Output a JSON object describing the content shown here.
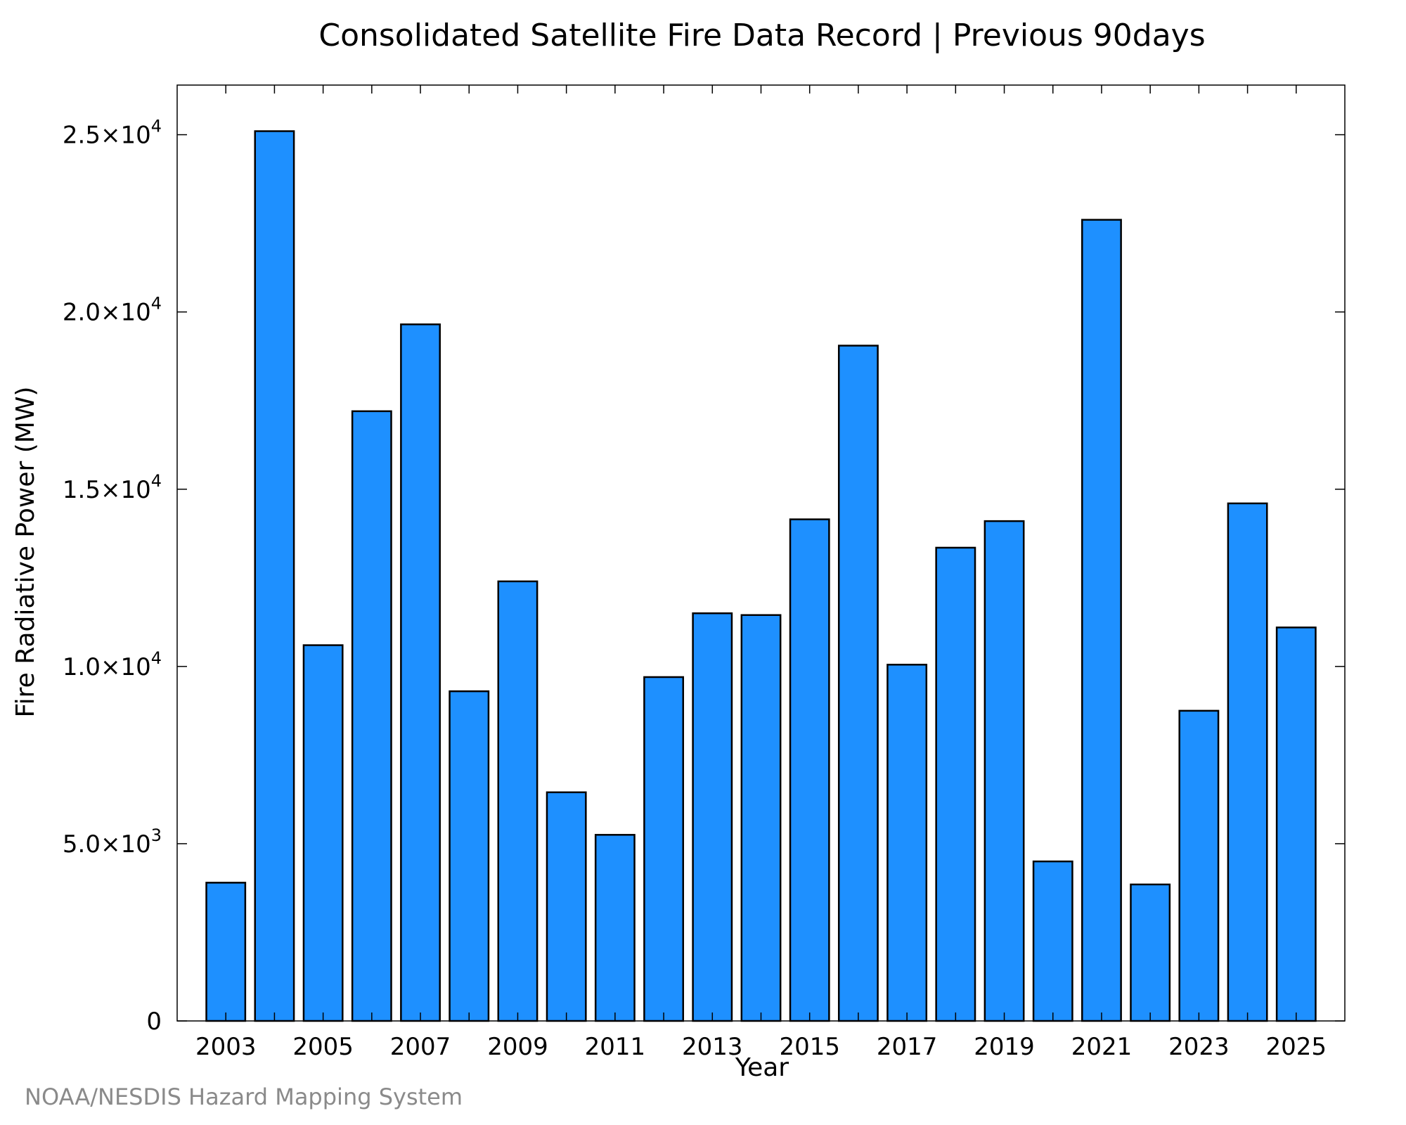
{
  "chart_data": {
    "type": "bar",
    "title": "Consolidated Satellite Fire Data Record | Previous 90days",
    "xlabel": "Year",
    "ylabel": "Fire Radiative Power (MW)",
    "credit": "NOAA/NESDIS Hazard Mapping System",
    "categories": [
      2003,
      2004,
      2005,
      2006,
      2007,
      2008,
      2009,
      2010,
      2011,
      2012,
      2013,
      2014,
      2015,
      2016,
      2017,
      2018,
      2019,
      2020,
      2021,
      2022,
      2023,
      2024,
      2025
    ],
    "values": [
      3900,
      25100,
      10600,
      17200,
      19650,
      9300,
      12400,
      6450,
      5250,
      9700,
      11500,
      11450,
      14150,
      19050,
      10050,
      13350,
      14100,
      4500,
      22600,
      3850,
      8750,
      14600,
      11100
    ],
    "x_tick_labels": [
      "2003",
      "2005",
      "2007",
      "2009",
      "2011",
      "2013",
      "2015",
      "2017",
      "2019",
      "2021",
      "2023",
      "2025"
    ],
    "y_ticks": [
      {
        "value": 0,
        "mantissa": "0",
        "exponent": ""
      },
      {
        "value": 5000,
        "mantissa": "5.0×10",
        "exponent": "3"
      },
      {
        "value": 10000,
        "mantissa": "1.0×10",
        "exponent": "4"
      },
      {
        "value": 15000,
        "mantissa": "1.5×10",
        "exponent": "4"
      },
      {
        "value": 20000,
        "mantissa": "2.0×10",
        "exponent": "4"
      },
      {
        "value": 25000,
        "mantissa": "2.5×10",
        "exponent": "4"
      }
    ],
    "ylim": [
      0,
      26400
    ],
    "xlim": [
      2002.0,
      2026.0
    ],
    "bar_color": "#1e90ff",
    "grid": false
  }
}
